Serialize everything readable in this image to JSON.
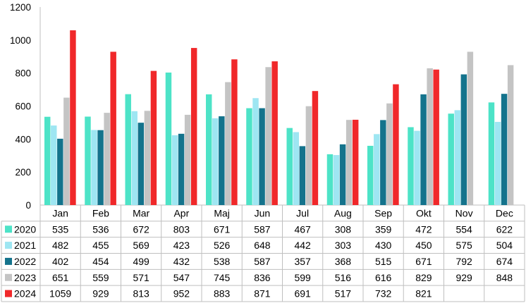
{
  "chart_data": {
    "type": "bar",
    "title": "",
    "xlabel": "",
    "ylabel": "",
    "ylim": [
      0,
      1200
    ],
    "yticks": [
      0,
      200,
      400,
      600,
      800,
      1000,
      1200
    ],
    "grid": false,
    "legend": "data-table",
    "categories": [
      "Jan",
      "Feb",
      "Mar",
      "Apr",
      "Maj",
      "Jun",
      "Jul",
      "Aug",
      "Sep",
      "Okt",
      "Nov",
      "Dec"
    ],
    "series": [
      {
        "name": "2020",
        "color": "#4de3c7",
        "values": [
          535,
          536,
          672,
          803,
          671,
          587,
          467,
          308,
          359,
          472,
          554,
          622
        ]
      },
      {
        "name": "2021",
        "color": "#9ee6f2",
        "values": [
          482,
          455,
          569,
          423,
          526,
          648,
          442,
          303,
          430,
          450,
          575,
          504
        ]
      },
      {
        "name": "2022",
        "color": "#14738c",
        "values": [
          402,
          454,
          499,
          432,
          538,
          587,
          357,
          368,
          515,
          671,
          792,
          674
        ]
      },
      {
        "name": "2023",
        "color": "#c4c4c4",
        "values": [
          651,
          559,
          571,
          547,
          745,
          836,
          599,
          516,
          616,
          829,
          929,
          848
        ]
      },
      {
        "name": "2024",
        "color": "#f0282a",
        "values": [
          1059,
          929,
          813,
          952,
          883,
          871,
          691,
          517,
          732,
          821,
          null,
          null
        ]
      }
    ]
  }
}
